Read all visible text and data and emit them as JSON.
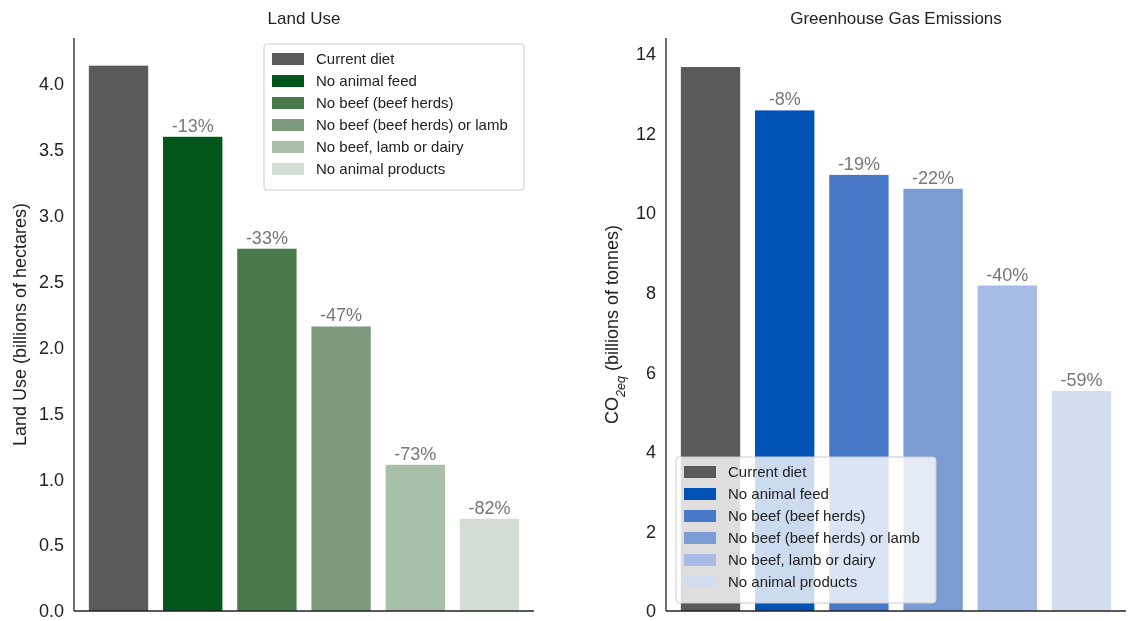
{
  "chart_data": [
    {
      "type": "bar",
      "title": "Land Use",
      "ylabel": "Land Use (billions of hectares)",
      "categories": [
        null,
        null,
        null,
        null,
        null,
        null
      ],
      "ylim": [
        0,
        4.35
      ],
      "yticks": [
        {
          "value": 0,
          "label": "0.0"
        },
        0.5,
        {
          "value": 1,
          "label": "1.0"
        },
        1.5,
        {
          "value": 2,
          "label": "2.0"
        },
        2.5,
        {
          "value": 3,
          "label": "3.0"
        },
        3.5,
        {
          "value": 4,
          "label": "4.0"
        }
      ],
      "grid": false,
      "legend": "top right",
      "annotations": [
        {
          "text": "-13%",
          "y": 3.6
        },
        {
          "text": "-33%",
          "y": 2.75
        },
        {
          "text": "-47%",
          "y": 2.16
        },
        {
          "text": "-73%",
          "y": 1.11
        },
        {
          "text": "-82%",
          "y": 0.7
        }
      ],
      "series": [
        {
          "name": "Current diet",
          "color": "#5a5a5a",
          "values": [
            4.14,
            null,
            null,
            null,
            null,
            null
          ]
        },
        {
          "name": "No animal feed",
          "color": "#02561a",
          "values": [
            null,
            3.6,
            null,
            null,
            null,
            null
          ]
        },
        {
          "name": "No beef (beef herds)",
          "color": "#4a7a4c",
          "values": [
            null,
            null,
            2.75,
            null,
            null,
            null
          ]
        },
        {
          "name": "No beef (beef herds) or lamb",
          "color": "#7b9b7c",
          "values": [
            null,
            null,
            null,
            2.16,
            null,
            null
          ]
        },
        {
          "name": "No beef, lamb or dairy",
          "color": "#a8bfa8",
          "values": [
            null,
            null,
            null,
            null,
            1.11,
            null
          ]
        },
        {
          "name": "No animal products",
          "color": "#d3ddd3",
          "values": [
            null,
            null,
            null,
            null,
            null,
            0.7
          ]
        }
      ]
    },
    {
      "type": "bar",
      "title": "Greenhouse Gas Emissions",
      "ylabel": "CO$_{2eq}$ (billions of tonnes)",
      "categories": [
        null,
        null,
        null,
        null,
        null,
        null
      ],
      "ylim": [
        0,
        14.4
      ],
      "yticks": [
        0,
        2,
        4,
        6,
        8,
        10,
        12,
        14
      ],
      "grid": false,
      "legend": "bottom left",
      "annotations": [
        {
          "text": "-8%",
          "y": 12.58
        },
        {
          "text": "-19%",
          "y": 10.96
        },
        {
          "text": "-22%",
          "y": 10.61
        },
        {
          "text": "-40%",
          "y": 8.18
        },
        {
          "text": "-59%",
          "y": 5.53
        }
      ],
      "series": [
        {
          "name": "Current diet",
          "color": "#5a5a5a",
          "values": [
            13.67,
            null,
            null,
            null,
            null,
            null
          ]
        },
        {
          "name": "No animal feed",
          "color": "#0052b4",
          "values": [
            null,
            12.58,
            null,
            null,
            null,
            null
          ]
        },
        {
          "name": "No beef (beef herds)",
          "color": "#4878c6",
          "values": [
            null,
            null,
            10.96,
            null,
            null,
            null
          ]
        },
        {
          "name": "No beef (beef herds) or lamb",
          "color": "#7b9bd3",
          "values": [
            null,
            null,
            null,
            10.61,
            null,
            null
          ]
        },
        {
          "name": "No beef, lamb or dairy",
          "color": "#a7bce4",
          "values": [
            null,
            null,
            null,
            null,
            8.18,
            null
          ]
        },
        {
          "name": "No animal products",
          "color": "#d3ddf0",
          "values": [
            null,
            null,
            null,
            null,
            null,
            5.53
          ]
        }
      ]
    }
  ]
}
